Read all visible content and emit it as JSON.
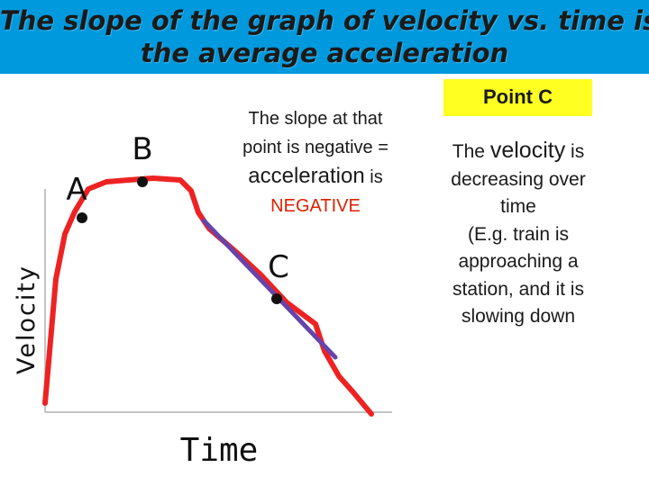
{
  "title": {
    "line1": "The slope of the graph of velocity vs. time is",
    "line2": "the average acceleration"
  },
  "graph": {
    "y_axis_label": "Velocity",
    "x_axis_label": "Time",
    "point_labels": {
      "a": "A",
      "b": "B",
      "c": "C"
    }
  },
  "explanation": {
    "line1": "The slope at that",
    "line2": "point is negative =",
    "acceleration_word": "acceleration",
    "is_word": " is",
    "negative_word": "NEGATIVE"
  },
  "point_c_box": {
    "label": "Point C"
  },
  "description": {
    "the": "The ",
    "velocity_word": "velocity",
    "is": " is",
    "line2": "decreasing over",
    "line3": "time",
    "line4": "(E.g. train is",
    "line5": "approaching a",
    "line6": "station, and it is",
    "line7": "slowing down"
  },
  "colors": {
    "title_bar": "#0099dd",
    "curve": "#ee2222",
    "tangent": "#6644aa",
    "negative_text": "#dd2200",
    "point_box": "#ffff22"
  }
}
